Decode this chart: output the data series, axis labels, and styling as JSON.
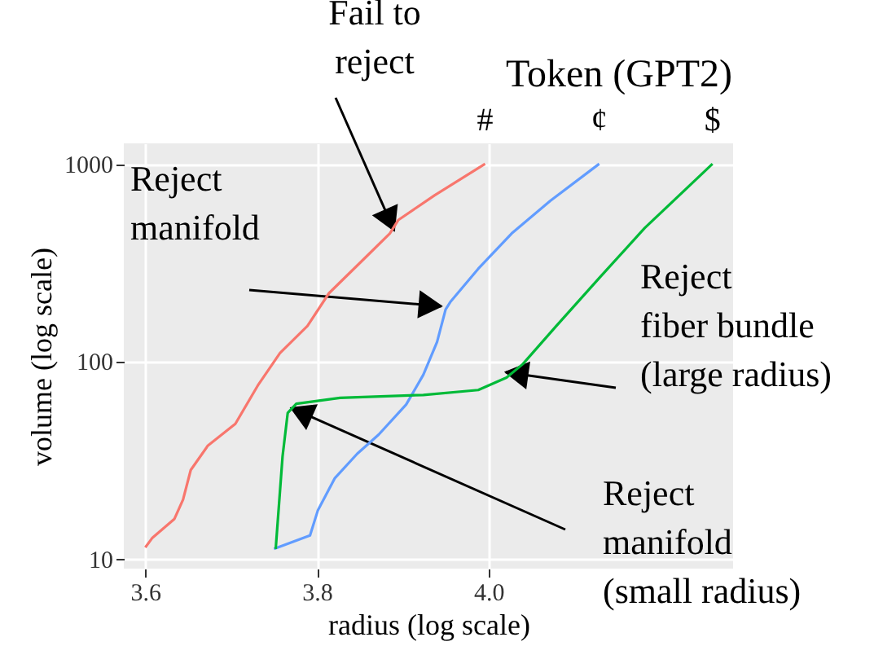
{
  "chart_data": {
    "type": "line",
    "xlabel": "radius (log scale)",
    "ylabel": "volume (log scale)",
    "legend_title": "Token (GPT2)",
    "log": "y",
    "grid": true,
    "legend": false,
    "marker": "none",
    "line_style": "solid",
    "xlim": [
      3.575,
      4.285
    ],
    "ylim": [
      8.9,
      1270
    ],
    "xticks": [
      3.6,
      3.8,
      {
        "value": 4,
        "label": "4.0"
      }
    ],
    "yticks": [
      10,
      100,
      1000
    ],
    "series": [
      {
        "name": "#",
        "color": "#f8766d",
        "x": [
          3.6,
          3.608,
          3.634,
          3.644,
          3.653,
          3.673,
          3.705,
          3.731,
          3.757,
          3.789,
          3.814,
          3.853,
          3.885,
          3.895,
          3.937,
          3.996
        ],
        "values": [
          11.4,
          12.7,
          15.9,
          19.9,
          28.1,
          37.4,
          48.2,
          75.2,
          110,
          151,
          221,
          324,
          444,
          520,
          692,
          1000
        ]
      },
      {
        "name": "¢",
        "color": "#619cff",
        "x": [
          3.75,
          3.792,
          3.801,
          3.821,
          3.847,
          3.872,
          3.904,
          3.924,
          3.94,
          3.95,
          3.956,
          3.988,
          4.027,
          4.072,
          4.129
        ],
        "values": [
          11.2,
          13.1,
          17.5,
          25.6,
          34,
          42.5,
          60.3,
          85.3,
          125,
          183,
          201,
          294,
          444,
          650,
          1000
        ]
      },
      {
        "name": "$",
        "color": "#00ba38",
        "x": [
          3.752,
          3.76,
          3.766,
          3.776,
          3.827,
          3.924,
          3.988,
          4.021,
          4.04,
          4.079,
          4.13,
          4.182,
          4.261
        ],
        "values": [
          11.2,
          33,
          54.7,
          60.9,
          65.3,
          67.5,
          71.5,
          82.6,
          96.8,
          151,
          267,
          473,
          1000
        ]
      }
    ],
    "annotations": [
      {
        "text": "Fail to\nreject",
        "x": 3.89,
        "y": 460
      },
      {
        "text": "Reject\nmanifold",
        "x": 3.945,
        "y": 190
      },
      {
        "text": "Reject\nfiber bundle\n(large radius)",
        "x": 4.02,
        "y": 88
      },
      {
        "text": "Reject\nmanifold\n(small radius)",
        "x": 3.77,
        "y": 58
      }
    ]
  }
}
